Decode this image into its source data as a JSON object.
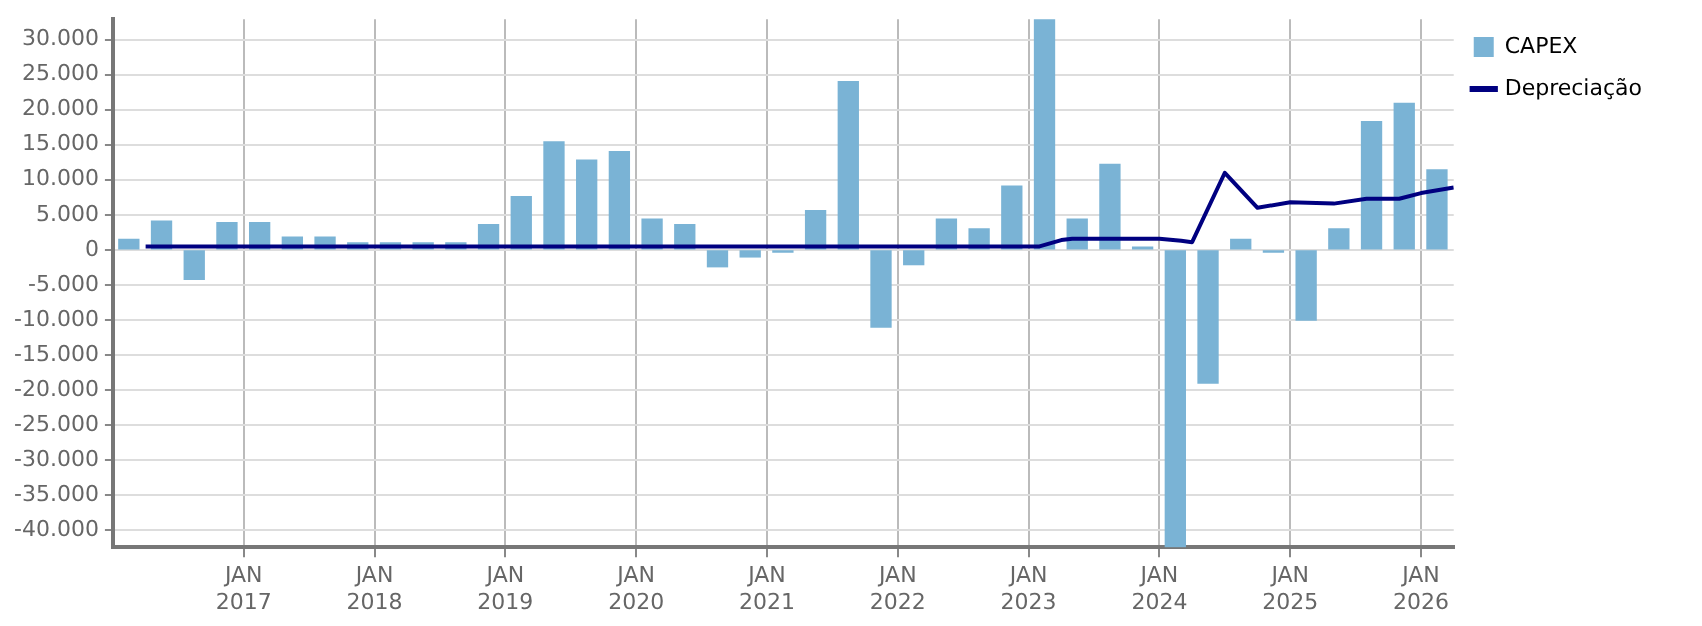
{
  "chart_data": {
    "type": "bar",
    "x": [
      "2016-02-15",
      "2016-05-15",
      "2016-08-15",
      "2016-11-15",
      "2017-02-15",
      "2017-05-15",
      "2017-08-15",
      "2017-11-15",
      "2018-02-15",
      "2018-05-15",
      "2018-08-15",
      "2018-11-15",
      "2019-02-15",
      "2019-05-15",
      "2019-08-15",
      "2019-11-15",
      "2020-02-15",
      "2020-05-15",
      "2020-08-15",
      "2020-11-15",
      "2021-02-15",
      "2021-05-15",
      "2021-08-15",
      "2021-11-15",
      "2022-02-15",
      "2022-05-15",
      "2022-08-15",
      "2022-11-15",
      "2023-02-15",
      "2023-05-15",
      "2023-08-15",
      "2023-11-15",
      "2024-02-15",
      "2024-05-15",
      "2024-08-15",
      "2024-11-15",
      "2025-02-15",
      "2025-05-15",
      "2025-08-15",
      "2025-11-15",
      "2026-02-15"
    ],
    "series": [
      {
        "name": "CAPEX",
        "color": "#7ab3d5",
        "values": [
          1500,
          4100,
          -4200,
          3900,
          3900,
          1800,
          1800,
          1000,
          1000,
          1000,
          1000,
          3600,
          7600,
          15400,
          12800,
          14000,
          4400,
          3600,
          -2400,
          -1000,
          -300,
          5600,
          24000,
          -11000,
          -2100,
          4400,
          3000,
          9100,
          32900,
          4400,
          12200,
          400,
          -42400,
          -19000,
          1500,
          -300,
          -10000,
          3000,
          18300,
          20900,
          11400
        ]
      },
      {
        "name": "Depreciação",
        "type": "line",
        "color": "#000080",
        "x": [
          "2016-04",
          "2023-02",
          "2023-04",
          "2023-05",
          "2024-01",
          "2024-03",
          "2024-04",
          "2024-07",
          "2024-10",
          "2025-01",
          "2025-05",
          "2025-08",
          "2025-11",
          "2026-01",
          "2026-04"
        ],
        "values": [
          500,
          500,
          1400,
          1600,
          1600,
          1300,
          1100,
          11000,
          6000,
          6800,
          6600,
          7300,
          7300,
          8100,
          8900
        ]
      }
    ],
    "xlim": [
      "2016-01",
      "2026-04"
    ],
    "xticks": [
      {
        "value": "2017-01",
        "label": "JAN 2017"
      },
      {
        "value": "2018-01",
        "label": "JAN 2018"
      },
      {
        "value": "2019-01",
        "label": "JAN 2019"
      },
      {
        "value": "2020-01",
        "label": "JAN 2020"
      },
      {
        "value": "2021-01",
        "label": "JAN 2021"
      },
      {
        "value": "2022-01",
        "label": "JAN 2022"
      },
      {
        "value": "2023-01",
        "label": "JAN 2023"
      },
      {
        "value": "2024-01",
        "label": "JAN 2024"
      },
      {
        "value": "2025-01",
        "label": "JAN 2025"
      },
      {
        "value": "2026-01",
        "label": "JAN 2026"
      }
    ],
    "ylim": [
      -42400,
      32900
    ],
    "yticks": [
      {
        "value": -40000,
        "label": "-40.000"
      },
      {
        "value": -35000,
        "label": "-35.000"
      },
      {
        "value": -30000,
        "label": "-30.000"
      },
      {
        "value": -25000,
        "label": "-25.000"
      },
      {
        "value": -20000,
        "label": "-20.000"
      },
      {
        "value": -15000,
        "label": "-15.000"
      },
      {
        "value": -10000,
        "label": "-10.000"
      },
      {
        "value": -5000,
        "label": "-5.000"
      },
      {
        "value": 0,
        "label": "0"
      },
      {
        "value": 5000,
        "label": "5.000"
      },
      {
        "value": 10000,
        "label": "10.000"
      },
      {
        "value": 15000,
        "label": "15.000"
      },
      {
        "value": 20000,
        "label": "20.000"
      },
      {
        "value": 25000,
        "label": "25.000"
      },
      {
        "value": 30000,
        "label": "30.000"
      }
    ],
    "grid": true,
    "legend": "top right",
    "marker": "none",
    "line_style": "solid"
  }
}
